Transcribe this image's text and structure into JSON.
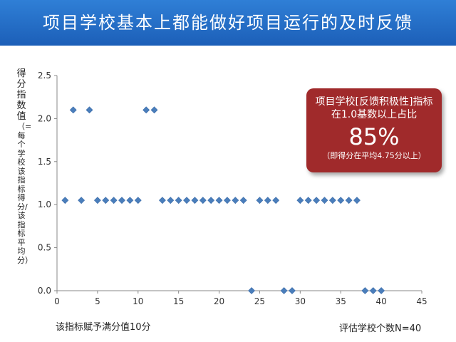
{
  "page": {
    "title": "项目学校基本上都能做好项目运行的及时反馈",
    "note_left": "该指标赋予满分值10分",
    "note_right": "评估学校个数N=40",
    "callout": {
      "line1": "项目学校[反馈积极性]指标在1.0基数以上占比",
      "percent": "85%",
      "note": "（即得分在平均4.75分以上）"
    },
    "ylabel_main": "得分指数值",
    "ylabel_sub": "（=每个学校该指标得分/该指标平均分）",
    "colors": {
      "title_bar": "#1f66c2",
      "marker": "#4a7ebb",
      "callout": "#a02a2b"
    }
  },
  "chart_data": {
    "type": "scatter",
    "xlim": [
      0,
      45
    ],
    "ylim": [
      0,
      2.5
    ],
    "x_ticks": [
      "0",
      "5",
      "10",
      "15",
      "20",
      "25",
      "30",
      "35",
      "40",
      "45"
    ],
    "y_ticks": [
      "0.0",
      "0.5",
      "1.0",
      "1.5",
      "2.0",
      "2.5"
    ],
    "grid": false,
    "x": [
      1,
      2,
      3,
      4,
      5,
      6,
      7,
      8,
      9,
      10,
      11,
      12,
      13,
      14,
      15,
      16,
      17,
      18,
      19,
      20,
      21,
      22,
      23,
      24,
      25,
      26,
      27,
      28,
      29,
      30,
      31,
      32,
      33,
      34,
      35,
      36,
      37,
      38,
      39,
      40
    ],
    "y": [
      1.05,
      2.1,
      1.05,
      2.1,
      1.05,
      1.05,
      1.05,
      1.05,
      1.05,
      1.05,
      2.1,
      2.1,
      1.05,
      1.05,
      1.05,
      1.05,
      1.05,
      1.05,
      1.05,
      1.05,
      1.05,
      1.05,
      1.05,
      0,
      1.05,
      1.05,
      1.05,
      0,
      0,
      1.05,
      1.05,
      1.05,
      1.05,
      1.05,
      1.05,
      1.05,
      1.05,
      0,
      0,
      0
    ],
    "marker": "diamond"
  }
}
